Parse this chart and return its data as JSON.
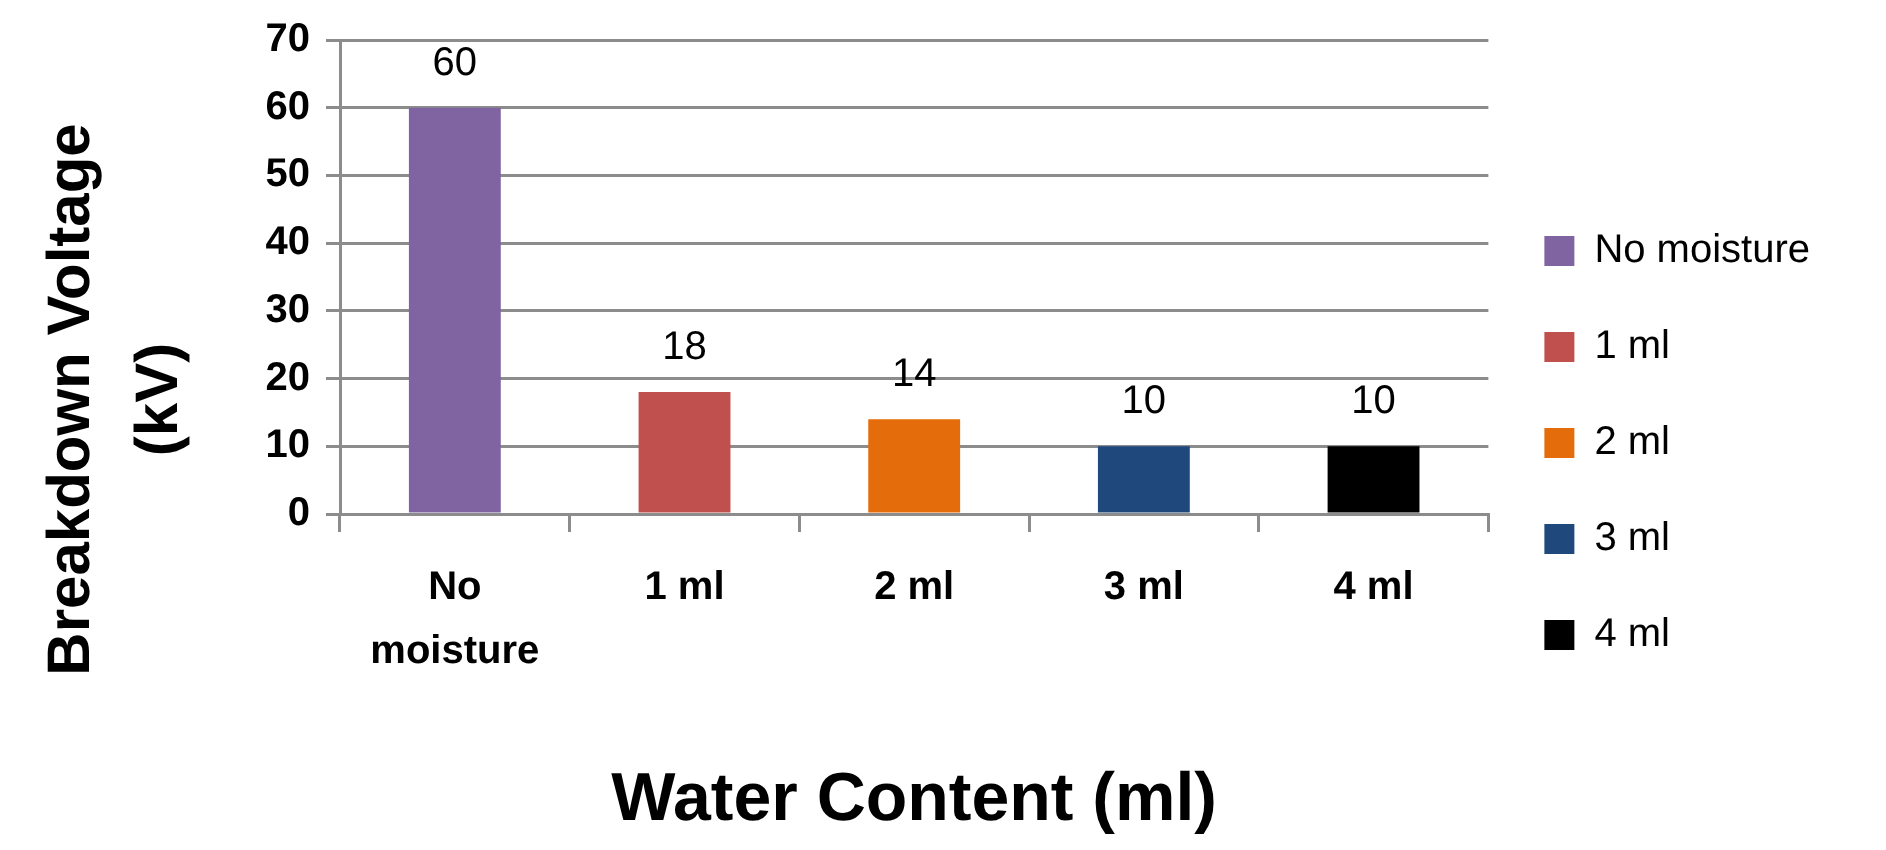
{
  "chart_data": {
    "type": "bar",
    "categories": [
      "No moisture",
      "1 ml",
      "2 ml",
      "3 ml",
      "4 ml"
    ],
    "series": [
      {
        "name": "No moisture",
        "color": "#8064a2",
        "values": [
          60,
          null,
          null,
          null,
          null
        ]
      },
      {
        "name": "1 ml",
        "color": "#c0504d",
        "values": [
          null,
          18,
          null,
          null,
          null
        ]
      },
      {
        "name": "2 ml",
        "color": "#e46c0a",
        "values": [
          null,
          null,
          14,
          null,
          null
        ]
      },
      {
        "name": "3 ml",
        "color": "#1f497d",
        "values": [
          null,
          null,
          null,
          10,
          null
        ]
      },
      {
        "name": "4 ml",
        "color": "#000000",
        "values": [
          null,
          null,
          null,
          null,
          10
        ]
      }
    ],
    "xlabel": "Water Content (ml)",
    "ylabel": "Breakdown Voltage (kV)",
    "ylim": [
      0,
      70
    ],
    "yticks": [
      0,
      10,
      20,
      30,
      40,
      50,
      60,
      70
    ],
    "grid": "y",
    "legend": "right",
    "data_labels": true
  }
}
